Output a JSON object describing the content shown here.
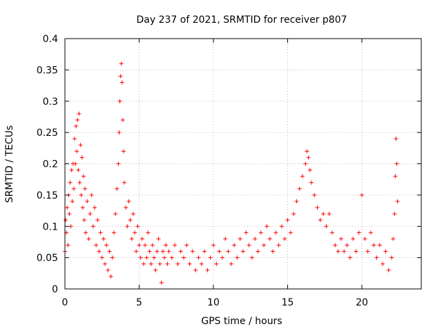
{
  "chart_data": {
    "type": "scatter",
    "title": "Day 237 of 2021, SRMTID for receiver p807",
    "xlabel": "GPS time / hours",
    "ylabel": "SRMTID / TECUs",
    "xlim": [
      0,
      24
    ],
    "ylim": [
      0,
      0.4
    ],
    "xticks": [
      0,
      5,
      10,
      15,
      20
    ],
    "xtick_labels": [
      "0",
      "5",
      "10",
      "15",
      "20"
    ],
    "yticks": [
      0,
      0.05,
      0.1,
      0.15,
      0.2,
      0.25,
      0.3,
      0.35,
      0.4
    ],
    "ytick_labels": [
      "0",
      "0.05",
      "0.1",
      "0.15",
      "0.2",
      "0.25",
      "0.3",
      "0.35",
      "0.4"
    ],
    "grid": true,
    "marker": "plus",
    "color": "#ff0000",
    "series": [
      {
        "name": "SRMTID",
        "points": [
          [
            0.0,
            0.06
          ],
          [
            0.05,
            0.11
          ],
          [
            0.1,
            0.09
          ],
          [
            0.15,
            0.13
          ],
          [
            0.2,
            0.07
          ],
          [
            0.25,
            0.15
          ],
          [
            0.3,
            0.12
          ],
          [
            0.35,
            0.17
          ],
          [
            0.4,
            0.1
          ],
          [
            0.45,
            0.19
          ],
          [
            0.5,
            0.14
          ],
          [
            0.55,
            0.2
          ],
          [
            0.6,
            0.16
          ],
          [
            0.65,
            0.24
          ],
          [
            0.7,
            0.2
          ],
          [
            0.75,
            0.26
          ],
          [
            0.8,
            0.22
          ],
          [
            0.85,
            0.27
          ],
          [
            0.9,
            0.19
          ],
          [
            0.95,
            0.28
          ],
          [
            1.0,
            0.17
          ],
          [
            1.05,
            0.23
          ],
          [
            1.1,
            0.15
          ],
          [
            1.15,
            0.21
          ],
          [
            1.2,
            0.13
          ],
          [
            1.25,
            0.18
          ],
          [
            1.3,
            0.11
          ],
          [
            1.35,
            0.16
          ],
          [
            1.4,
            0.09
          ],
          [
            1.5,
            0.14
          ],
          [
            1.6,
            0.08
          ],
          [
            1.7,
            0.12
          ],
          [
            1.8,
            0.15
          ],
          [
            1.9,
            0.1
          ],
          [
            2.0,
            0.13
          ],
          [
            2.1,
            0.07
          ],
          [
            2.2,
            0.11
          ],
          [
            2.3,
            0.06
          ],
          [
            2.4,
            0.09
          ],
          [
            2.5,
            0.05
          ],
          [
            2.6,
            0.08
          ],
          [
            2.7,
            0.04
          ],
          [
            2.8,
            0.07
          ],
          [
            2.9,
            0.03
          ],
          [
            3.0,
            0.06
          ],
          [
            3.1,
            0.02
          ],
          [
            3.2,
            0.05
          ],
          [
            3.3,
            0.09
          ],
          [
            3.4,
            0.12
          ],
          [
            3.5,
            0.16
          ],
          [
            3.6,
            0.2
          ],
          [
            3.65,
            0.25
          ],
          [
            3.7,
            0.3
          ],
          [
            3.75,
            0.34
          ],
          [
            3.8,
            0.36
          ],
          [
            3.85,
            0.33
          ],
          [
            3.9,
            0.27
          ],
          [
            3.95,
            0.22
          ],
          [
            4.0,
            0.17
          ],
          [
            4.1,
            0.13
          ],
          [
            4.2,
            0.1
          ],
          [
            4.3,
            0.14
          ],
          [
            4.4,
            0.11
          ],
          [
            4.5,
            0.08
          ],
          [
            4.6,
            0.12
          ],
          [
            4.7,
            0.09
          ],
          [
            4.8,
            0.06
          ],
          [
            4.9,
            0.1
          ],
          [
            5.0,
            0.07
          ],
          [
            5.1,
            0.05
          ],
          [
            5.2,
            0.08
          ],
          [
            5.3,
            0.04
          ],
          [
            5.4,
            0.07
          ],
          [
            5.5,
            0.05
          ],
          [
            5.6,
            0.09
          ],
          [
            5.7,
            0.06
          ],
          [
            5.8,
            0.04
          ],
          [
            5.9,
            0.07
          ],
          [
            6.0,
            0.05
          ],
          [
            6.1,
            0.03
          ],
          [
            6.2,
            0.06
          ],
          [
            6.3,
            0.08
          ],
          [
            6.4,
            0.04
          ],
          [
            6.5,
            0.01
          ],
          [
            6.6,
            0.06
          ],
          [
            6.7,
            0.05
          ],
          [
            6.8,
            0.07
          ],
          [
            6.9,
            0.04
          ],
          [
            7.0,
            0.06
          ],
          [
            7.2,
            0.05
          ],
          [
            7.4,
            0.07
          ],
          [
            7.6,
            0.04
          ],
          [
            7.8,
            0.06
          ],
          [
            8.0,
            0.05
          ],
          [
            8.2,
            0.07
          ],
          [
            8.4,
            0.04
          ],
          [
            8.6,
            0.06
          ],
          [
            8.8,
            0.03
          ],
          [
            9.0,
            0.05
          ],
          [
            9.2,
            0.04
          ],
          [
            9.4,
            0.06
          ],
          [
            9.6,
            0.03
          ],
          [
            9.8,
            0.05
          ],
          [
            10.0,
            0.07
          ],
          [
            10.2,
            0.04
          ],
          [
            10.4,
            0.06
          ],
          [
            10.6,
            0.05
          ],
          [
            10.8,
            0.08
          ],
          [
            11.0,
            0.06
          ],
          [
            11.2,
            0.04
          ],
          [
            11.4,
            0.07
          ],
          [
            11.6,
            0.05
          ],
          [
            11.8,
            0.08
          ],
          [
            12.0,
            0.06
          ],
          [
            12.2,
            0.09
          ],
          [
            12.4,
            0.07
          ],
          [
            12.6,
            0.05
          ],
          [
            12.8,
            0.08
          ],
          [
            13.0,
            0.06
          ],
          [
            13.2,
            0.09
          ],
          [
            13.4,
            0.07
          ],
          [
            13.6,
            0.1
          ],
          [
            13.8,
            0.08
          ],
          [
            14.0,
            0.06
          ],
          [
            14.2,
            0.09
          ],
          [
            14.4,
            0.07
          ],
          [
            14.6,
            0.1
          ],
          [
            14.8,
            0.08
          ],
          [
            15.0,
            0.11
          ],
          [
            15.2,
            0.09
          ],
          [
            15.4,
            0.12
          ],
          [
            15.6,
            0.14
          ],
          [
            15.8,
            0.16
          ],
          [
            16.0,
            0.18
          ],
          [
            16.2,
            0.2
          ],
          [
            16.3,
            0.22
          ],
          [
            16.4,
            0.21
          ],
          [
            16.5,
            0.19
          ],
          [
            16.6,
            0.17
          ],
          [
            16.8,
            0.15
          ],
          [
            17.0,
            0.13
          ],
          [
            17.2,
            0.11
          ],
          [
            17.4,
            0.12
          ],
          [
            17.6,
            0.1
          ],
          [
            17.8,
            0.12
          ],
          [
            18.0,
            0.09
          ],
          [
            18.2,
            0.07
          ],
          [
            18.4,
            0.06
          ],
          [
            18.6,
            0.08
          ],
          [
            18.8,
            0.06
          ],
          [
            19.0,
            0.07
          ],
          [
            19.2,
            0.05
          ],
          [
            19.4,
            0.08
          ],
          [
            19.6,
            0.06
          ],
          [
            19.8,
            0.09
          ],
          [
            20.0,
            0.15
          ],
          [
            20.2,
            0.08
          ],
          [
            20.4,
            0.06
          ],
          [
            20.6,
            0.09
          ],
          [
            20.8,
            0.07
          ],
          [
            21.0,
            0.05
          ],
          [
            21.2,
            0.07
          ],
          [
            21.4,
            0.04
          ],
          [
            21.6,
            0.06
          ],
          [
            21.8,
            0.03
          ],
          [
            22.0,
            0.05
          ],
          [
            22.1,
            0.08
          ],
          [
            22.2,
            0.12
          ],
          [
            22.25,
            0.18
          ],
          [
            22.3,
            0.24
          ],
          [
            22.35,
            0.2
          ],
          [
            22.4,
            0.14
          ]
        ]
      }
    ]
  }
}
